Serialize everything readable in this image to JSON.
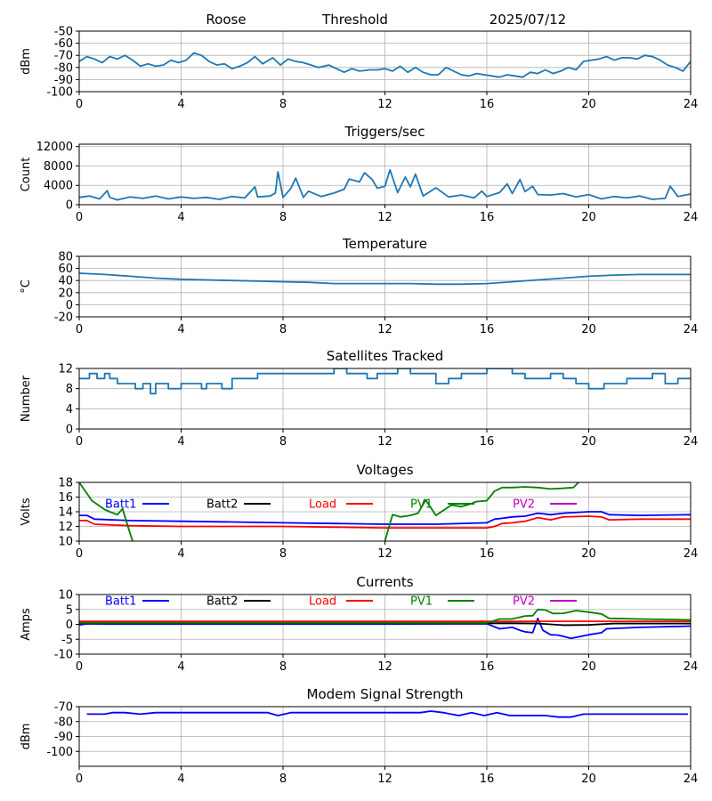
{
  "header": {
    "station": "Roose",
    "mode": "Threshold",
    "date": "2025/07/12"
  },
  "x_ticks": [
    "0",
    "4",
    "8",
    "12",
    "16",
    "20",
    "24"
  ],
  "chart_data": [
    {
      "type": "line",
      "title": "",
      "ylabel": "dBm",
      "xlim": [
        0,
        24
      ],
      "ylim": [
        -100,
        -50
      ],
      "yticks": [
        -100,
        -90,
        -80,
        -70,
        -60,
        -50
      ],
      "grid": true,
      "series": [
        {
          "color": "#1f77b4",
          "x": [
            0,
            0.3,
            0.6,
            0.9,
            1.2,
            1.5,
            1.8,
            2.1,
            2.4,
            2.7,
            3.0,
            3.3,
            3.6,
            3.9,
            4.2,
            4.5,
            4.8,
            5.1,
            5.4,
            5.7,
            6.0,
            6.3,
            6.6,
            6.9,
            7.2,
            7.6,
            7.9,
            8.2,
            8.5,
            8.8,
            9.1,
            9.4,
            9.8,
            10.1,
            10.4,
            10.7,
            11.0,
            11.4,
            11.7,
            12.0,
            12.3,
            12.6,
            12.9,
            13.2,
            13.5,
            13.8,
            14.1,
            14.4,
            14.7,
            15.0,
            15.3,
            15.6,
            15.9,
            16.2,
            16.5,
            16.8,
            17.1,
            17.4,
            17.7,
            18.0,
            18.3,
            18.6,
            18.9,
            19.2,
            19.5,
            19.8,
            20.1,
            20.4,
            20.7,
            21.0,
            21.3,
            21.6,
            21.9,
            22.2,
            22.5,
            22.8,
            23.1,
            23.4,
            23.7,
            24.0
          ],
          "y": [
            -75,
            -71,
            -73,
            -76,
            -71,
            -73,
            -70,
            -74,
            -79,
            -77,
            -79,
            -78,
            -74,
            -76,
            -74,
            -68,
            -70,
            -75,
            -78,
            -77,
            -81,
            -79,
            -76,
            -71,
            -77,
            -72,
            -78,
            -73,
            -75,
            -76,
            -78,
            -80,
            -78,
            -81,
            -84,
            -81,
            -83,
            -82,
            -82,
            -81,
            -83,
            -79,
            -84,
            -80,
            -84,
            -86,
            -86,
            -80,
            -83,
            -86,
            -87,
            -85,
            -86,
            -87,
            -88,
            -86,
            -87,
            -88,
            -84,
            -85,
            -82,
            -85,
            -83,
            -80,
            -82,
            -75,
            -74,
            -73,
            -71,
            -74,
            -72,
            -72,
            -73,
            -70,
            -71,
            -74,
            -78,
            -80,
            -83,
            -75
          ]
        }
      ]
    },
    {
      "type": "line",
      "title": "Triggers/sec",
      "ylabel": "Count",
      "xlim": [
        0,
        24
      ],
      "ylim": [
        0,
        12500
      ],
      "yticks": [
        0,
        4000,
        8000,
        12000
      ],
      "grid": true,
      "series": [
        {
          "color": "#1f77b4",
          "x": [
            0,
            0.4,
            0.8,
            1.1,
            1.2,
            1.5,
            2.0,
            2.5,
            3.0,
            3.5,
            4.0,
            4.5,
            5.0,
            5.5,
            6.0,
            6.5,
            6.9,
            7.0,
            7.5,
            7.7,
            7.8,
            8.0,
            8.3,
            8.5,
            8.8,
            9.0,
            9.5,
            10.0,
            10.4,
            10.6,
            11.0,
            11.2,
            11.5,
            11.7,
            12.0,
            12.2,
            12.5,
            12.8,
            13.0,
            13.2,
            13.5,
            14.0,
            14.5,
            15.0,
            15.5,
            15.8,
            16.0,
            16.5,
            16.8,
            17.0,
            17.3,
            17.5,
            17.8,
            18.0,
            18.5,
            19.0,
            19.5,
            20.0,
            20.5,
            21.0,
            21.5,
            22.0,
            22.5,
            23.0,
            23.2,
            23.5,
            24.0
          ],
          "y": [
            1500,
            1800,
            1200,
            2900,
            1500,
            1000,
            1600,
            1300,
            1800,
            1200,
            1600,
            1300,
            1500,
            1100,
            1700,
            1400,
            3700,
            1600,
            1800,
            2400,
            6800,
            1500,
            3300,
            5500,
            1500,
            2800,
            1700,
            2400,
            3200,
            5300,
            4700,
            6600,
            5200,
            3400,
            3800,
            7200,
            2500,
            5700,
            3700,
            6300,
            1800,
            3500,
            1600,
            2000,
            1400,
            2800,
            1700,
            2500,
            4300,
            2300,
            5200,
            2700,
            3800,
            2100,
            2000,
            2300,
            1600,
            2100,
            1200,
            1700,
            1400,
            1800,
            1100,
            1300,
            3800,
            1700,
            2200
          ]
        }
      ]
    },
    {
      "type": "line",
      "title": "Temperature",
      "ylabel": "°C",
      "xlim": [
        0,
        24
      ],
      "ylim": [
        -20,
        80
      ],
      "yticks": [
        -20,
        0,
        20,
        40,
        60,
        80
      ],
      "grid": true,
      "series": [
        {
          "color": "#1f77b4",
          "x": [
            0,
            1,
            2,
            3,
            4,
            5,
            6,
            7,
            8,
            9,
            10,
            11,
            12,
            13,
            14,
            15,
            16,
            17,
            18,
            19,
            20,
            21,
            22,
            23,
            24
          ],
          "y": [
            52,
            50,
            47,
            44,
            42,
            41,
            40,
            39,
            38,
            37,
            35,
            35,
            35,
            35,
            34,
            34,
            35,
            38,
            41,
            44,
            47,
            49,
            50,
            50,
            50
          ]
        }
      ]
    },
    {
      "type": "line",
      "title": "Satellites Tracked",
      "ylabel": "Number",
      "xlim": [
        0,
        24
      ],
      "ylim": [
        0,
        12
      ],
      "yticks": [
        0,
        4,
        8,
        12
      ],
      "grid": true,
      "series": [
        {
          "color": "#1f77b4",
          "step": true,
          "x": [
            0,
            0.4,
            0.7,
            1.0,
            1.2,
            1.5,
            2.0,
            2.2,
            2.5,
            2.8,
            3.0,
            3.5,
            4.0,
            4.5,
            4.8,
            5.0,
            5.3,
            5.6,
            6.0,
            6.5,
            7.0,
            7.5,
            8.0,
            8.5,
            9.0,
            9.5,
            10.0,
            10.5,
            11.0,
            11.3,
            11.7,
            12.0,
            12.5,
            13.0,
            13.5,
            14.0,
            14.5,
            15.0,
            15.5,
            16.0,
            16.5,
            17.0,
            17.5,
            18.0,
            18.5,
            19.0,
            19.5,
            20.0,
            20.3,
            20.6,
            21.0,
            21.5,
            22.0,
            22.5,
            23.0,
            23.5,
            24.0
          ],
          "y": [
            10,
            11,
            10,
            11,
            10,
            9,
            9,
            8,
            9,
            7,
            9,
            8,
            9,
            9,
            8,
            9,
            9,
            8,
            10,
            10,
            11,
            11,
            11,
            11,
            11,
            11,
            12,
            11,
            11,
            10,
            11,
            11,
            12,
            11,
            11,
            9,
            10,
            11,
            11,
            12,
            12,
            11,
            10,
            10,
            11,
            10,
            9,
            8,
            8,
            9,
            9,
            10,
            10,
            11,
            9,
            10,
            10
          ]
        }
      ]
    },
    {
      "type": "line",
      "title": "Voltages",
      "ylabel": "Volts",
      "xlim": [
        0,
        24
      ],
      "ylim": [
        10,
        18
      ],
      "yticks": [
        10,
        12,
        14,
        16,
        18
      ],
      "grid": true,
      "legend_placement": "top, inside",
      "series": [
        {
          "name": "Batt1",
          "color": "#0000ff",
          "x": [
            0,
            0.3,
            0.6,
            2,
            4,
            6,
            8,
            10,
            12,
            14,
            16,
            16.3,
            16.6,
            17,
            17.5,
            18,
            18.5,
            19,
            20,
            20.5,
            20.8,
            22,
            24
          ],
          "y": [
            13.5,
            13.5,
            13.0,
            12.8,
            12.7,
            12.6,
            12.5,
            12.4,
            12.3,
            12.3,
            12.5,
            13.0,
            13.1,
            13.3,
            13.4,
            13.8,
            13.6,
            13.8,
            14.0,
            14.0,
            13.6,
            13.5,
            13.6
          ]
        },
        {
          "name": "Batt2",
          "color": "#000000",
          "x": [],
          "y": []
        },
        {
          "name": "Load",
          "color": "#ff0000",
          "x": [
            0,
            0.3,
            0.6,
            2,
            4,
            6,
            8,
            10,
            12,
            14,
            16,
            16.3,
            16.6,
            17,
            17.5,
            18,
            18.5,
            19,
            20,
            20.5,
            20.8,
            22,
            24
          ],
          "y": [
            12.8,
            12.8,
            12.3,
            12.1,
            12.0,
            12.0,
            12.0,
            11.9,
            11.8,
            11.8,
            11.8,
            12.0,
            12.4,
            12.5,
            12.7,
            13.2,
            12.9,
            13.3,
            13.4,
            13.3,
            12.9,
            13.0,
            13.0
          ]
        },
        {
          "name": "PV1",
          "color": "#008000",
          "x": [
            0,
            0.5,
            1.0,
            1.2,
            1.5,
            1.7,
            2.0,
            2.1,
            null,
            12.0,
            12.3,
            12.6,
            13.0,
            13.3,
            13.6,
            14.0,
            14.3,
            14.6,
            15.0,
            15.3,
            15.6,
            16.0,
            16.3,
            16.6,
            17.0,
            17.5,
            18.0,
            18.5,
            19.0,
            19.4,
            19.6
          ],
          "y": [
            18.0,
            15.5,
            14.3,
            14.0,
            13.6,
            14.4,
            11.0,
            10.0,
            null,
            10.0,
            13.6,
            13.3,
            13.5,
            13.8,
            15.6,
            13.5,
            14.2,
            14.9,
            14.7,
            15.0,
            15.4,
            15.5,
            16.8,
            17.3,
            17.3,
            17.4,
            17.3,
            17.1,
            17.2,
            17.3,
            18.0
          ]
        },
        {
          "name": "PV2",
          "color": "#bf00bf",
          "x": [],
          "y": []
        }
      ]
    },
    {
      "type": "line",
      "title": "Currents",
      "ylabel": "Amps",
      "xlim": [
        0,
        24
      ],
      "ylim": [
        -10,
        10
      ],
      "yticks": [
        -10,
        -5,
        0,
        5,
        10
      ],
      "grid": true,
      "legend_placement": "top, inside",
      "series": [
        {
          "name": "Batt1",
          "color": "#0000ff",
          "x": [
            0,
            0.3,
            1,
            4,
            8,
            12,
            16,
            16.5,
            17,
            17.3,
            17.5,
            17.8,
            18.0,
            18.2,
            18.5,
            18.8,
            19.3,
            20,
            20.5,
            20.7,
            22,
            24
          ],
          "y": [
            -0.2,
            0.2,
            0.1,
            0.1,
            0.1,
            0.1,
            0.2,
            -1.5,
            -1.0,
            -2.0,
            -2.5,
            -2.8,
            2.0,
            -2.0,
            -3.5,
            -3.6,
            -4.7,
            -3.5,
            -2.8,
            -1.5,
            -1.0,
            -0.6
          ]
        },
        {
          "name": "Batt2",
          "color": "#000000",
          "x": [
            0,
            16,
            17,
            18,
            19,
            20,
            21,
            24
          ],
          "y": [
            0.4,
            0.4,
            0.4,
            0.3,
            -0.3,
            -0.2,
            0.3,
            0.3
          ]
        },
        {
          "name": "Load",
          "color": "#ff0000",
          "x": [
            0,
            2,
            8,
            12,
            16,
            20,
            24
          ],
          "y": [
            1.0,
            1.0,
            1.0,
            1.0,
            1.0,
            1.0,
            1.0
          ]
        },
        {
          "name": "PV1",
          "color": "#008000",
          "x": [
            0,
            16,
            16.5,
            17,
            17.5,
            17.8,
            18.0,
            18.3,
            18.6,
            19,
            19.5,
            20,
            20.5,
            20.8,
            22,
            24
          ],
          "y": [
            0.5,
            0.5,
            1.8,
            1.8,
            2.8,
            2.9,
            5.0,
            4.8,
            3.6,
            3.7,
            4.6,
            4.1,
            3.5,
            2.0,
            1.8,
            1.5
          ]
        },
        {
          "name": "PV2",
          "color": "#bf00bf",
          "x": [],
          "y": []
        }
      ]
    },
    {
      "type": "line",
      "title": "Modem Signal Strength",
      "ylabel": "dBm",
      "xlim": [
        0,
        24
      ],
      "ylim": [
        -110,
        -70
      ],
      "yticks": [
        -100,
        -90,
        -80,
        -70
      ],
      "grid": true,
      "series": [
        {
          "color": "#0000ff",
          "x": [
            0.3,
            1.0,
            1.3,
            1.8,
            2.4,
            3.0,
            4.0,
            5.0,
            6.0,
            7.0,
            7.4,
            7.8,
            8.3,
            9.0,
            10.0,
            11.0,
            12.0,
            13.0,
            13.4,
            13.8,
            14.3,
            14.9,
            15.4,
            15.9,
            16.4,
            16.9,
            17.3,
            17.8,
            18.3,
            18.8,
            19.3,
            19.8,
            20.3,
            21.0,
            22.0,
            23.0,
            23.9
          ],
          "y": [
            -75,
            -75,
            -74,
            -74,
            -75,
            -74,
            -74,
            -74,
            -74,
            -74,
            -74,
            -76,
            -74,
            -74,
            -74,
            -74,
            -74,
            -74,
            -74,
            -73,
            -74,
            -76,
            -74,
            -76,
            -74,
            -76,
            -76,
            -76,
            -76,
            -77,
            -77,
            -75,
            -75,
            -75,
            -75,
            -75,
            -75
          ]
        }
      ]
    }
  ]
}
